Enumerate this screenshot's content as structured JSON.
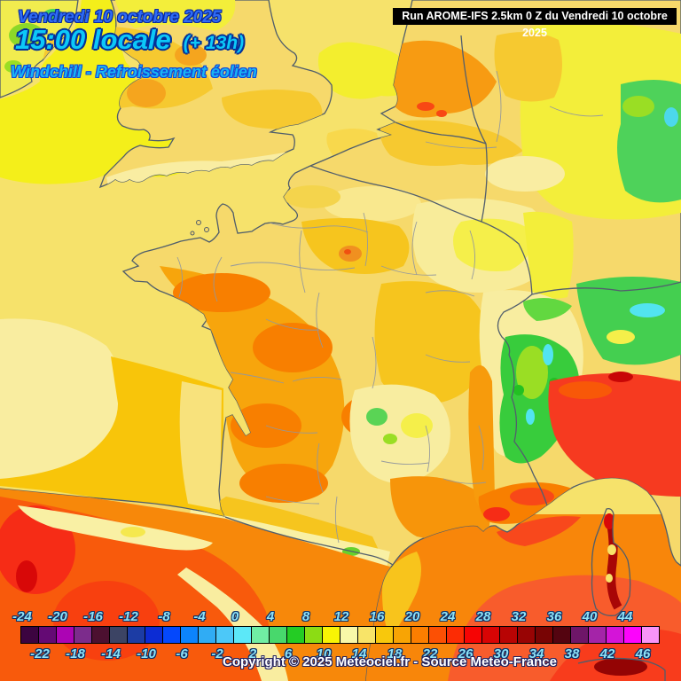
{
  "header": {
    "date_line": "Vendredi 10 octobre 2025",
    "time_line": "15:00 locale",
    "time_offset": "(+ 13h)",
    "subtitle": "Windchill - Refroissement éolien",
    "run_info": "Run AROME-IFS 2.5km 0 Z du Vendredi 10 octobre 2025"
  },
  "footer": {
    "copyright": "Copyright © 2025 Meteociel.fr - Source Meteo-France"
  },
  "colorbar": {
    "min": -24,
    "max": 48,
    "step": 2,
    "top_labels": [
      "-24",
      "-20",
      "-16",
      "-12",
      "-8",
      "-4",
      "0",
      "4",
      "8",
      "12",
      "16",
      "20",
      "24",
      "28",
      "32",
      "36",
      "40",
      "44"
    ],
    "bottom_labels": [
      "-22",
      "-18",
      "-14",
      "-10",
      "-6",
      "-2",
      "2",
      "6",
      "10",
      "14",
      "18",
      "22",
      "26",
      "30",
      "34",
      "38",
      "42",
      "46"
    ],
    "cell_colors": [
      "#3c0440",
      "#640a74",
      "#ac04b4",
      "#7c2c8c",
      "#4c1030",
      "#3c4464",
      "#1c3ca4",
      "#0c2cd4",
      "#0448fc",
      "#0c84fc",
      "#30acf4",
      "#4cc8f8",
      "#5ce8f8",
      "#70eea4",
      "#48d86c",
      "#24cc24",
      "#8cdc14",
      "#f8f404",
      "#f8f8a8",
      "#f8e468",
      "#f8c80c",
      "#f8a404",
      "#fc7e00",
      "#fc5004",
      "#fc2c04",
      "#f60404",
      "#d80404",
      "#b80404",
      "#980404",
      "#780404",
      "#540410",
      "#6e1668",
      "#a424a8",
      "#d414d8",
      "#fc04fc",
      "#f894f8"
    ]
  },
  "colors": {
    "sea_channel": "#f6e26b",
    "sea_biscay": "#f8c50a",
    "sea_mediterranean": "#f8860a",
    "title_blue": "#2e6cf6",
    "title_cyan": "#0cc8f8",
    "label_cyan": "#8ee2f6",
    "run_box_bg": "#000000"
  }
}
